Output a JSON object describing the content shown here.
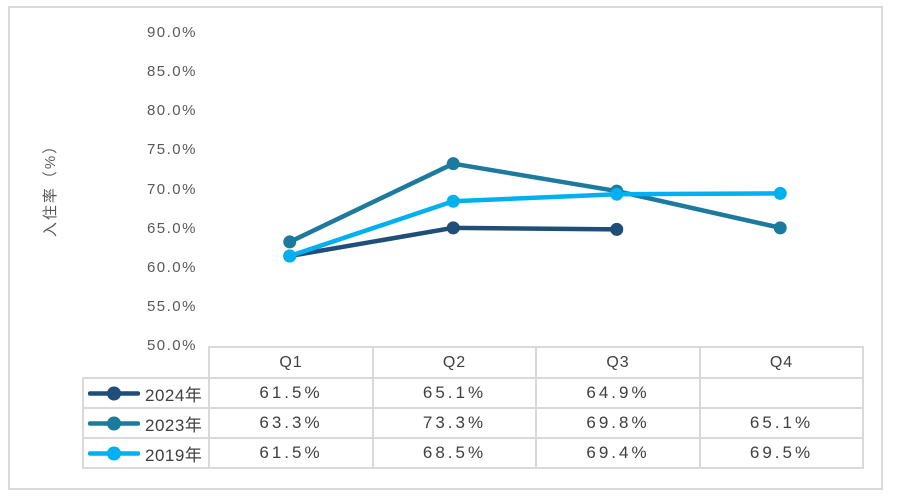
{
  "chart_data": {
    "type": "line",
    "title": "",
    "categories": [
      "Q1",
      "Q2",
      "Q3",
      "Q4"
    ],
    "series": [
      {
        "name": "2024年",
        "color": "#1F4E79",
        "values": [
          61.5,
          65.1,
          64.9,
          null
        ],
        "labels": [
          "61.5%",
          "65.1%",
          "64.9%",
          ""
        ]
      },
      {
        "name": "2023年",
        "color": "#1B7A9E",
        "values": [
          63.3,
          73.3,
          69.8,
          65.1
        ],
        "labels": [
          "63.3%",
          "73.3%",
          "69.8%",
          "65.1%"
        ]
      },
      {
        "name": "2019年",
        "color": "#00B0F0",
        "values": [
          61.5,
          68.5,
          69.4,
          69.5
        ],
        "labels": [
          "61.5%",
          "68.5%",
          "69.4%",
          "69.5%"
        ]
      }
    ],
    "xlabel": "",
    "ylabel": "入住率（%）",
    "ylim": [
      50,
      90
    ],
    "ytick_step": 5,
    "ytick_labels": [
      "90.0%",
      "85.0%",
      "80.0%",
      "75.0%",
      "70.0%",
      "65.0%",
      "60.0%",
      "55.0%",
      "50.0%"
    ],
    "grid": false,
    "marker": "circle",
    "legend_position": "data-table-left",
    "data_table_shown": true
  },
  "style": {
    "frame_border_color": "#D9D9D9",
    "table_border_color": "#D9D9D9",
    "axis_text_color": "#595959",
    "table_text_color": "#404040",
    "background": "#FFFFFF"
  }
}
